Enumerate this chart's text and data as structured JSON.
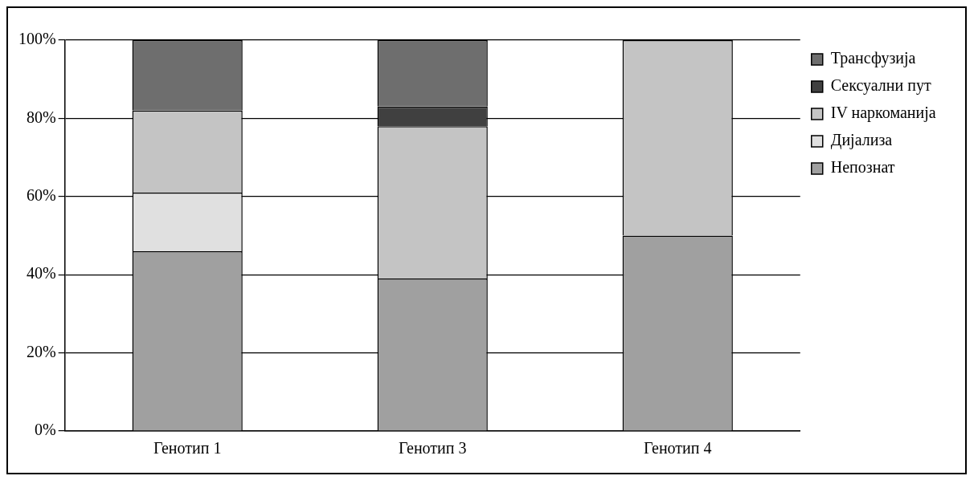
{
  "chart_data": {
    "type": "bar",
    "stacked": true,
    "categories": [
      "Генотип 1",
      "Генотип 3",
      "Генотип 4"
    ],
    "series": [
      {
        "name": "Непознат",
        "color": "#a0a0a0",
        "values": [
          46,
          39,
          50
        ]
      },
      {
        "name": "Дијализа",
        "color": "#e0e0e0",
        "values": [
          15,
          0,
          0
        ]
      },
      {
        "name": "IV наркоманија",
        "color": "#c4c4c4",
        "values": [
          21,
          39,
          50
        ]
      },
      {
        "name": "Сексуални пут",
        "color": "#404040",
        "values": [
          0,
          5,
          0
        ]
      },
      {
        "name": "Трансфузија",
        "color": "#6e6e6e",
        "values": [
          18,
          17,
          0
        ]
      }
    ],
    "ylim": [
      0,
      100
    ],
    "yticks": [
      {
        "value": 0,
        "label": "0%"
      },
      {
        "value": 20,
        "label": "20%"
      },
      {
        "value": 40,
        "label": "40%"
      },
      {
        "value": 60,
        "label": "60%"
      },
      {
        "value": 80,
        "label": "80%"
      },
      {
        "value": 100,
        "label": "100%"
      }
    ],
    "grid": "y",
    "legend": "right"
  }
}
